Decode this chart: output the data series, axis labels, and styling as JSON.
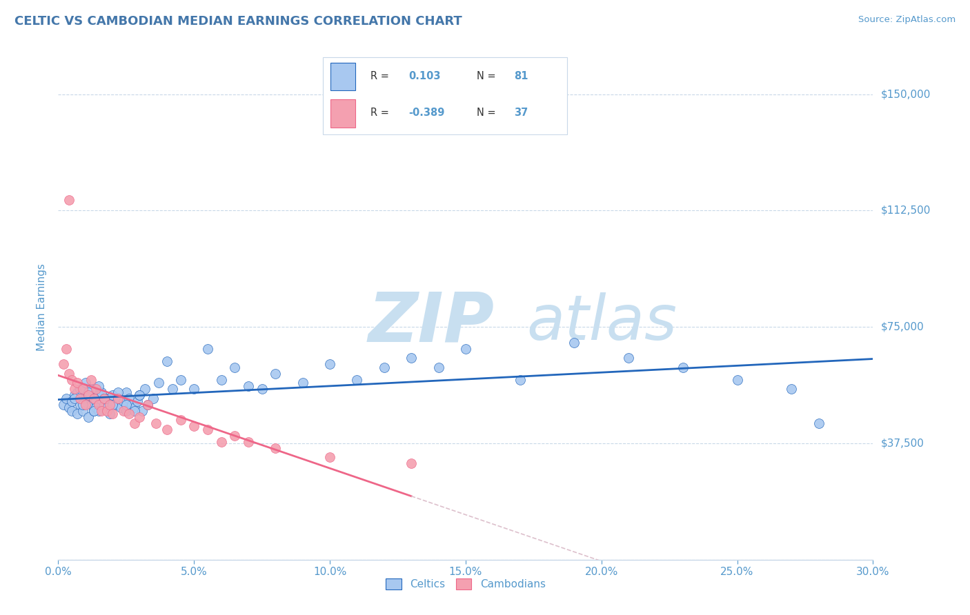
{
  "title": "CELTIC VS CAMBODIAN MEDIAN EARNINGS CORRELATION CHART",
  "source": "Source: ZipAtlas.com",
  "xlabel_ticks": [
    "0.0%",
    "5.0%",
    "10.0%",
    "15.0%",
    "20.0%",
    "25.0%",
    "30.0%"
  ],
  "xlabel_vals": [
    0.0,
    5.0,
    10.0,
    15.0,
    20.0,
    25.0,
    30.0
  ],
  "ylabel_ticks": [
    0,
    37500,
    75000,
    112500,
    150000
  ],
  "ylabel_labels": [
    "",
    "$37,500",
    "$75,000",
    "$112,500",
    "$150,000"
  ],
  "xlim": [
    0.0,
    30.0
  ],
  "ylim": [
    0,
    162500
  ],
  "celtics_R": 0.103,
  "celtics_N": 81,
  "cambodians_R": -0.389,
  "cambodians_N": 37,
  "celtics_color": "#a8c8f0",
  "cambodians_color": "#f4a0b0",
  "celtics_line_color": "#2266bb",
  "cambodians_line_color": "#ee6688",
  "cambodians_dash_color": "#ddc0cc",
  "watermark_zip_color": "#c8dff0",
  "watermark_atlas_color": "#c8dff0",
  "title_color": "#4477aa",
  "axis_color": "#5599cc",
  "grid_color": "#c8d8e8",
  "celtics_x": [
    0.2,
    0.3,
    0.4,
    0.5,
    0.5,
    0.6,
    0.7,
    0.7,
    0.8,
    0.8,
    0.9,
    1.0,
    1.0,
    1.1,
    1.1,
    1.2,
    1.2,
    1.3,
    1.3,
    1.4,
    1.4,
    1.5,
    1.5,
    1.6,
    1.7,
    1.8,
    1.8,
    1.9,
    2.0,
    2.0,
    2.1,
    2.2,
    2.3,
    2.4,
    2.5,
    2.5,
    2.6,
    2.7,
    2.8,
    2.9,
    3.0,
    3.1,
    3.2,
    3.3,
    3.5,
    3.7,
    4.0,
    4.2,
    4.5,
    5.0,
    5.5,
    6.0,
    6.5,
    7.0,
    7.5,
    8.0,
    9.0,
    10.0,
    11.0,
    12.0,
    13.0,
    14.0,
    15.0,
    17.0,
    19.0,
    21.0,
    23.0,
    25.0,
    27.0,
    28.0,
    0.6,
    0.9,
    1.1,
    1.3,
    1.5,
    1.7,
    2.0,
    2.2,
    2.5,
    2.8,
    3.0
  ],
  "celtics_y": [
    50000,
    52000,
    49000,
    51000,
    48000,
    53000,
    47000,
    54000,
    50000,
    55000,
    48000,
    52000,
    57000,
    46000,
    53000,
    50000,
    55000,
    48000,
    52000,
    51000,
    49000,
    53000,
    48000,
    54000,
    50000,
    49000,
    52000,
    47000,
    51000,
    53000,
    50000,
    52000,
    49000,
    51000,
    48000,
    54000,
    52000,
    50000,
    49000,
    51000,
    53000,
    48000,
    55000,
    50000,
    52000,
    57000,
    64000,
    55000,
    58000,
    55000,
    68000,
    58000,
    62000,
    56000,
    55000,
    60000,
    57000,
    63000,
    58000,
    62000,
    65000,
    62000,
    68000,
    58000,
    70000,
    65000,
    62000,
    58000,
    55000,
    44000,
    52000,
    50000,
    54000,
    48000,
    56000,
    52000,
    50000,
    54000,
    50000,
    48000,
    53000
  ],
  "cambodians_x": [
    0.2,
    0.3,
    0.4,
    0.5,
    0.6,
    0.7,
    0.8,
    0.9,
    1.0,
    1.1,
    1.2,
    1.3,
    1.4,
    1.5,
    1.6,
    1.7,
    1.8,
    1.9,
    2.0,
    2.2,
    2.4,
    2.6,
    2.8,
    3.0,
    3.3,
    3.6,
    4.0,
    4.5,
    5.0,
    5.5,
    6.0,
    6.5,
    7.0,
    8.0,
    10.0,
    13.0,
    0.4
  ],
  "cambodians_y": [
    63000,
    68000,
    60000,
    58000,
    55000,
    57000,
    52000,
    55000,
    50000,
    53000,
    58000,
    52000,
    55000,
    50000,
    48000,
    52000,
    48000,
    50000,
    47000,
    52000,
    48000,
    47000,
    44000,
    46000,
    50000,
    44000,
    42000,
    45000,
    43000,
    42000,
    38000,
    40000,
    38000,
    36000,
    33000,
    31000,
    116000
  ]
}
